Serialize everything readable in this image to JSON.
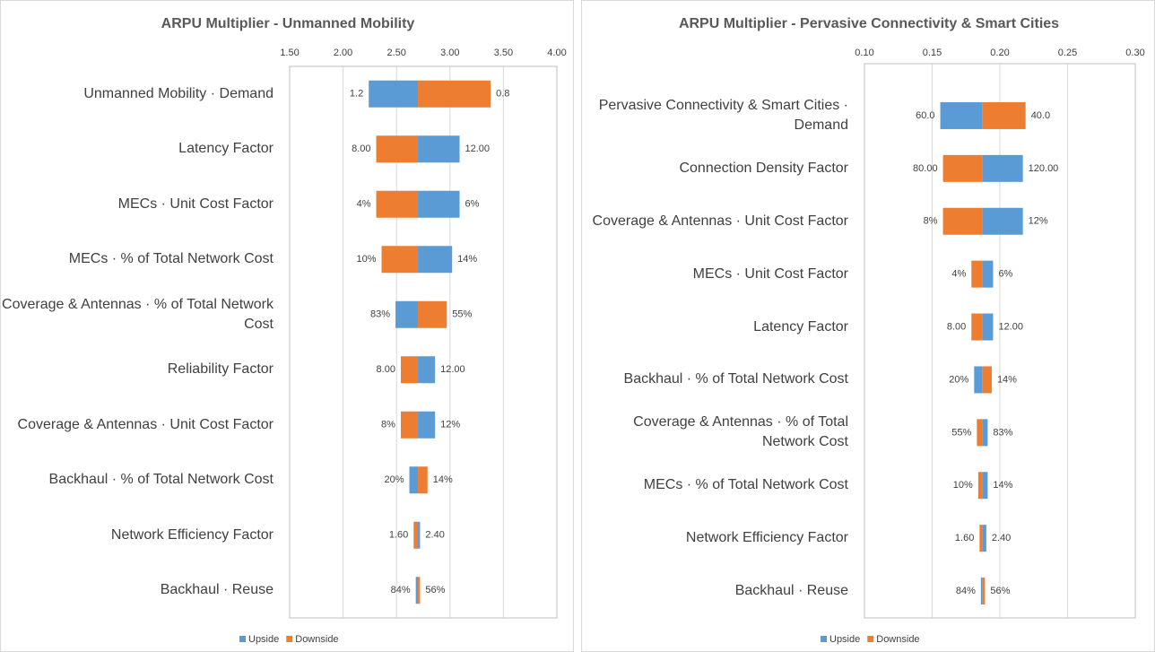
{
  "chart_data": [
    {
      "type": "tornado",
      "title": "ARPU Multiplier - Unmanned Mobility",
      "base": 2.7,
      "categories": [
        "Unmanned Mobility · Demand",
        "Latency Factor",
        "MECs · Unit Cost Factor",
        "MECs · % of Total Network Cost",
        "Coverage & Antennas · % of Total Network Cost",
        "Reliability Factor",
        "Coverage & Antennas · Unit Cost Factor",
        "Backhaul · % of Total Network Cost",
        "Network Efficiency Factor",
        "Backhaul · Reuse"
      ],
      "series": [
        {
          "name": "Upside",
          "color": "#5b9bd5",
          "values": [
            2.24,
            3.09,
            3.09,
            3.02,
            2.49,
            2.86,
            2.86,
            2.62,
            2.72,
            2.68
          ],
          "input_labels": [
            "1.2",
            "12.00",
            "6%",
            "14%",
            "83%",
            "12.00",
            "12%",
            "20%",
            "2.40",
            "84%"
          ]
        },
        {
          "name": "Downside",
          "color": "#ed7d31",
          "values": [
            3.38,
            2.31,
            2.31,
            2.36,
            2.97,
            2.54,
            2.54,
            2.79,
            2.66,
            2.72
          ],
          "input_labels": [
            "0.8",
            "8.00",
            "4%",
            "10%",
            "55%",
            "8.00",
            "8%",
            "14%",
            "1.60",
            "56%"
          ]
        }
      ],
      "xlim": [
        1.5,
        4.0
      ],
      "xticks": [
        {
          "value": 1.5,
          "label": "1.50"
        },
        {
          "value": 2.0,
          "label": "2.00"
        },
        {
          "value": 2.5,
          "label": "2.50"
        },
        {
          "value": 3.0,
          "label": "3.00"
        },
        {
          "value": 3.5,
          "label": "3.50"
        },
        {
          "value": 4.0,
          "label": "4.00"
        }
      ],
      "grid": true,
      "legend": "bottom"
    },
    {
      "type": "tornado",
      "title": "ARPU Multiplier - Pervasive Connectivity & Smart Cities",
      "base": 0.187,
      "categories": [
        "Pervasive Connectivity & Smart Cities · Demand",
        "Connection Density Factor",
        "Coverage & Antennas · Unit Cost Factor",
        "MECs · Unit Cost Factor",
        "Latency Factor",
        "Backhaul · % of Total Network Cost",
        "Coverage & Antennas · % of Total Network Cost",
        "MECs · % of Total Network Cost",
        "Network Efficiency Factor",
        "Backhaul · Reuse"
      ],
      "series": [
        {
          "name": "Upside",
          "color": "#5b9bd5",
          "values": [
            0.156,
            0.217,
            0.217,
            0.195,
            0.195,
            0.181,
            0.191,
            0.191,
            0.19,
            0.186
          ],
          "input_labels": [
            "60.0",
            "120.00",
            "12%",
            "6%",
            "12.00",
            "20%",
            "83%",
            "14%",
            "2.40",
            "84%"
          ]
        },
        {
          "name": "Downside",
          "color": "#ed7d31",
          "values": [
            0.219,
            0.158,
            0.158,
            0.179,
            0.179,
            0.194,
            0.183,
            0.184,
            0.185,
            0.189
          ],
          "input_labels": [
            "40.0",
            "80.00",
            "8%",
            "4%",
            "8.00",
            "14%",
            "55%",
            "10%",
            "1.60",
            "56%"
          ]
        }
      ],
      "xlim": [
        0.1,
        0.3
      ],
      "xticks": [
        {
          "value": 0.1,
          "label": "0.10"
        },
        {
          "value": 0.15,
          "label": "0.15"
        },
        {
          "value": 0.2,
          "label": "0.20"
        },
        {
          "value": 0.25,
          "label": "0.25"
        },
        {
          "value": 0.3,
          "label": "0.30"
        }
      ],
      "grid": true,
      "legend": "bottom"
    }
  ]
}
